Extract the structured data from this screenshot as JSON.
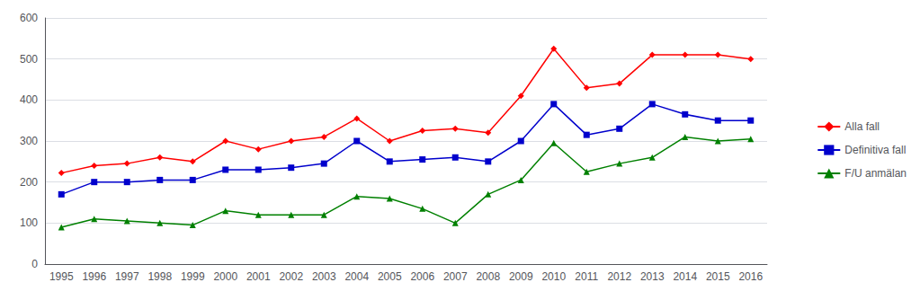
{
  "chart_data": {
    "type": "line",
    "categories": [
      "1995",
      "1996",
      "1997",
      "1998",
      "1999",
      "2000",
      "2001",
      "2002",
      "2003",
      "2004",
      "2005",
      "2006",
      "2007",
      "2008",
      "2009",
      "2010",
      "2011",
      "2012",
      "2013",
      "2014",
      "2015",
      "2016"
    ],
    "series": [
      {
        "name": "Alla fall",
        "color": "#ff0000",
        "marker": "diamond",
        "values": [
          222,
          240,
          245,
          260,
          250,
          300,
          280,
          300,
          310,
          355,
          300,
          325,
          330,
          320,
          410,
          525,
          430,
          440,
          510,
          510,
          510,
          500
        ]
      },
      {
        "name": "Definitiva fall",
        "color": "#0000cc",
        "marker": "square",
        "values": [
          170,
          200,
          200,
          205,
          205,
          230,
          230,
          235,
          245,
          300,
          250,
          255,
          260,
          250,
          300,
          390,
          315,
          330,
          390,
          365,
          350,
          350
        ]
      },
      {
        "name": "F/U anmälan",
        "color": "#008000",
        "marker": "triangle",
        "values": [
          90,
          110,
          105,
          100,
          95,
          130,
          120,
          120,
          120,
          165,
          160,
          135,
          100,
          170,
          205,
          295,
          225,
          245,
          260,
          310,
          300,
          305
        ]
      }
    ],
    "ylim": [
      0,
      600
    ],
    "yticks": [
      0,
      100,
      200,
      300,
      400,
      500,
      600
    ],
    "grid": true,
    "legend": "right"
  }
}
